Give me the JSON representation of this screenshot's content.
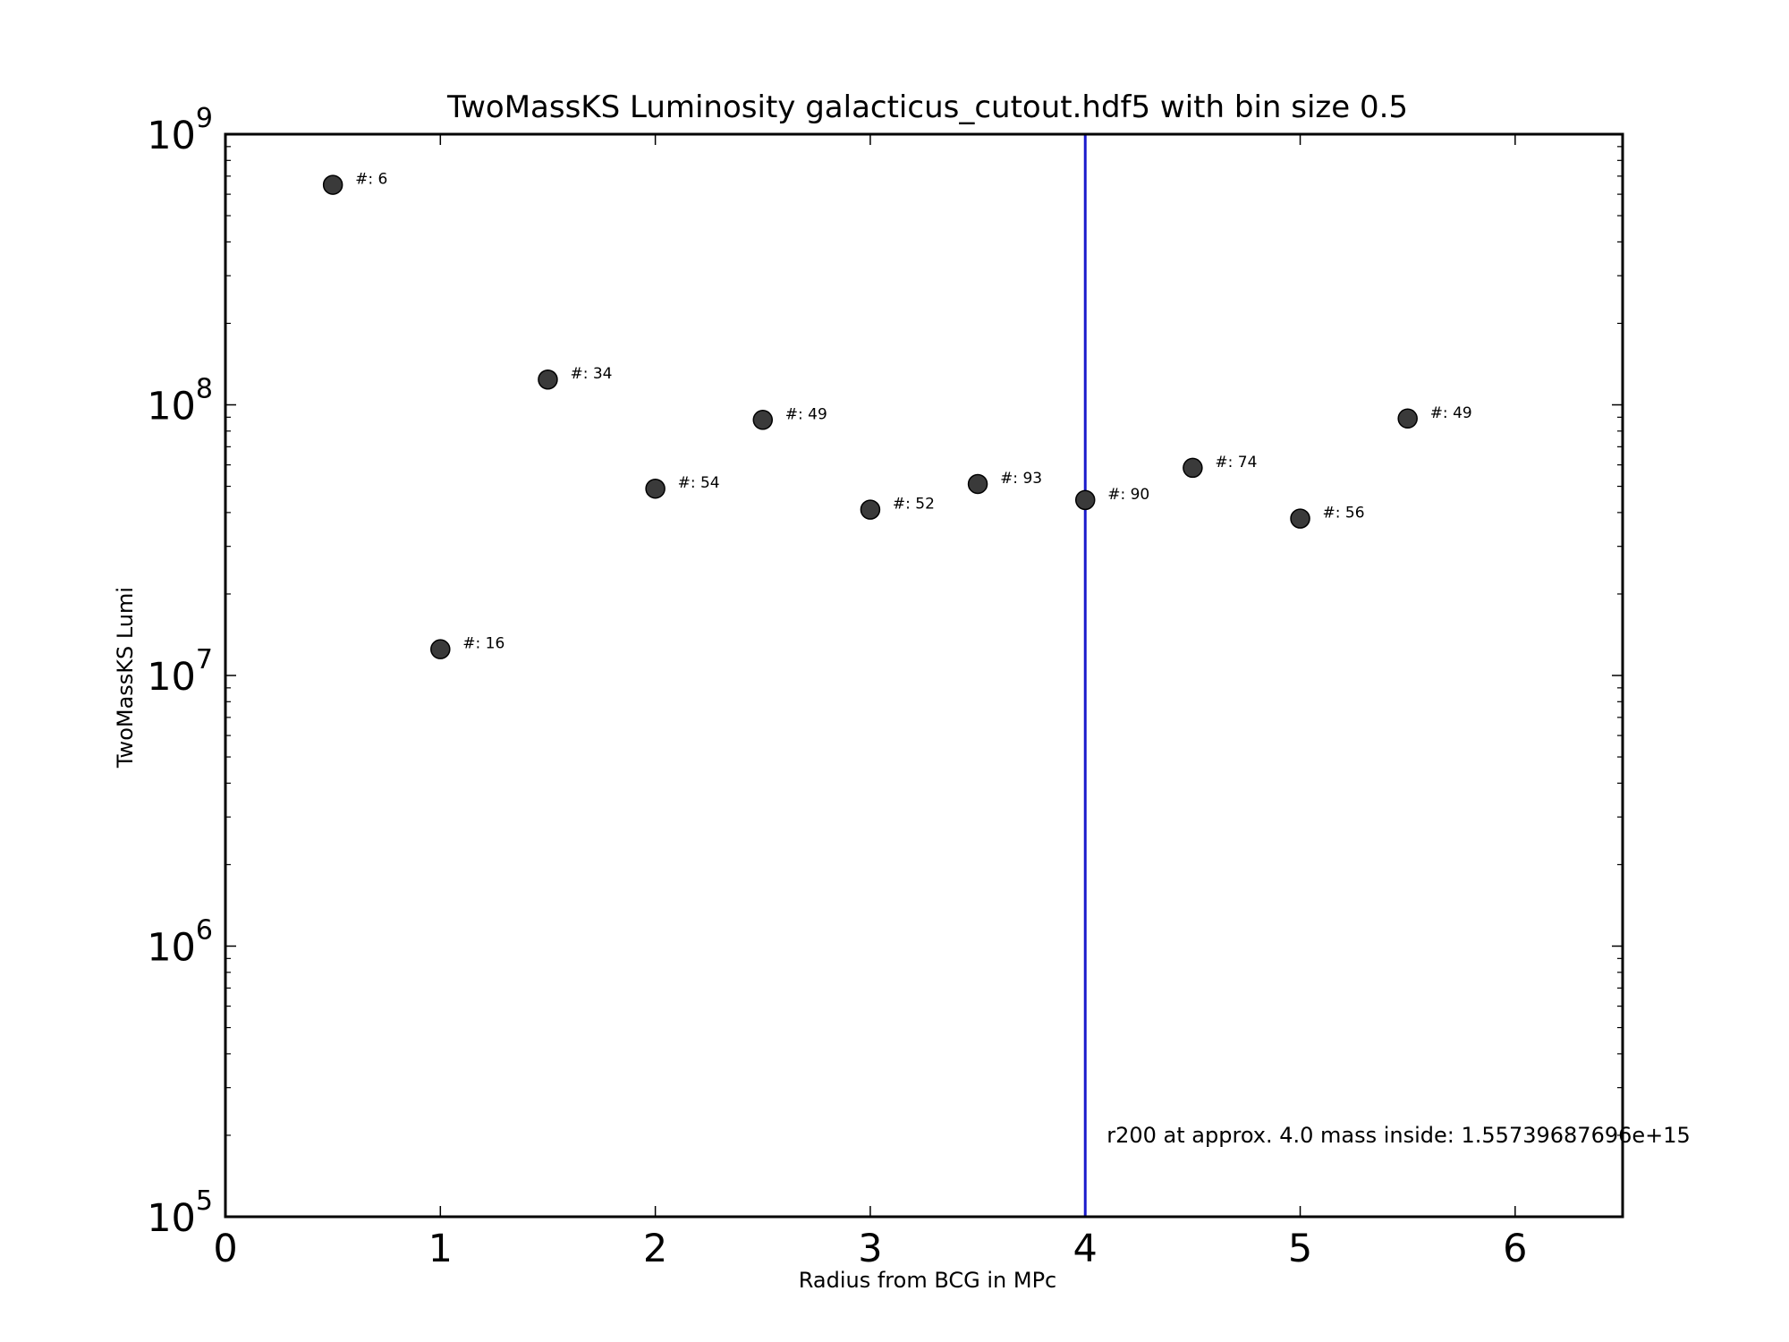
{
  "chart_data": {
    "type": "scatter",
    "title": "TwoMassKS Luminosity galacticus_cutout.hdf5 with bin size 0.5",
    "xlabel": "Radius from BCG in MPc",
    "ylabel": "TwoMassKS Lumi",
    "xlim": [
      0,
      6.5
    ],
    "ylim": [
      100000,
      1000000000
    ],
    "y_scale": "log",
    "grid": false,
    "legend": "none",
    "x_ticks": [
      0,
      1,
      2,
      3,
      4,
      5,
      6
    ],
    "x_tick_labels": [
      "0",
      "1",
      "2",
      "3",
      "4",
      "5",
      "6"
    ],
    "y_ticks": [
      100000,
      1000000,
      10000000,
      100000000,
      1000000000
    ],
    "y_tick_labels": [
      {
        "base": "10",
        "exp": "5"
      },
      {
        "base": "10",
        "exp": "6"
      },
      {
        "base": "10",
        "exp": "7"
      },
      {
        "base": "10",
        "exp": "8"
      },
      {
        "base": "10",
        "exp": "9"
      }
    ],
    "series": [
      {
        "marker_color": "#3a3a3a",
        "points": [
          {
            "x": 0.5,
            "y": 650000000,
            "label": "#: 6"
          },
          {
            "x": 1.0,
            "y": 12500000,
            "label": "#: 16"
          },
          {
            "x": 1.5,
            "y": 124000000,
            "label": "#: 34"
          },
          {
            "x": 2.0,
            "y": 49000000,
            "label": "#: 54"
          },
          {
            "x": 2.5,
            "y": 88000000,
            "label": "#: 49"
          },
          {
            "x": 3.0,
            "y": 41000000,
            "label": "#: 52"
          },
          {
            "x": 3.5,
            "y": 51000000,
            "label": "#: 93"
          },
          {
            "x": 4.0,
            "y": 44500000,
            "label": "#: 90"
          },
          {
            "x": 4.5,
            "y": 58500000,
            "label": "#: 74"
          },
          {
            "x": 5.0,
            "y": 38000000,
            "label": "#: 56"
          },
          {
            "x": 5.5,
            "y": 89000000,
            "label": "#: 49"
          }
        ]
      }
    ],
    "vline": {
      "x": 4.0,
      "color": "#1a1acc"
    },
    "annotation": {
      "text": "r200 at approx. 4.0 mass inside: 1.55739687696e+15",
      "x": 4.1,
      "y": 200000
    }
  }
}
